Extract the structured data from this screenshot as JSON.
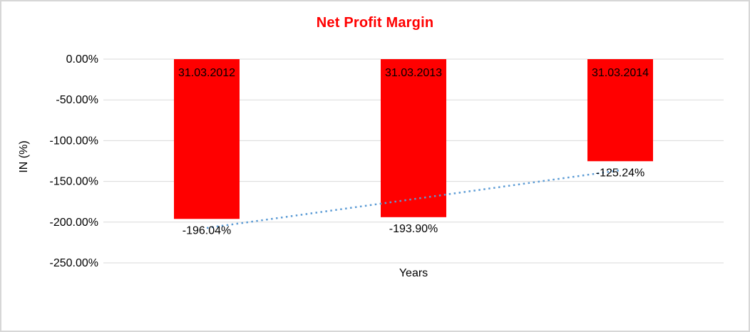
{
  "chart_data": {
    "type": "bar",
    "title": "Net Profit Margin",
    "xlabel": "Years",
    "ylabel": "IN (%)",
    "categories": [
      "31.03.2012",
      "31.03.2013",
      "31.03.2014"
    ],
    "values": [
      -196.04,
      -193.9,
      -125.24
    ],
    "value_labels": [
      "-196.04%",
      "-193.90%",
      "-125.24%"
    ],
    "ylim": [
      0,
      -250
    ],
    "yticks": [
      {
        "label": "0.00%",
        "value": 0
      },
      {
        "label": "-50.00%",
        "value": -50
      },
      {
        "label": "-100.00%",
        "value": -100
      },
      {
        "label": "-150.00%",
        "value": -150
      },
      {
        "label": "-200.00%",
        "value": -200
      },
      {
        "label": "-250.00%",
        "value": -250
      }
    ],
    "grid": true,
    "legend": false,
    "trendline": {
      "type": "linear",
      "style": "dotted"
    },
    "colors": {
      "bar": "#FF0000",
      "title": "#FF0000",
      "trendline": "#5B9BD5",
      "gridline": "#D9D9D9",
      "axis_text": "#000000"
    }
  }
}
